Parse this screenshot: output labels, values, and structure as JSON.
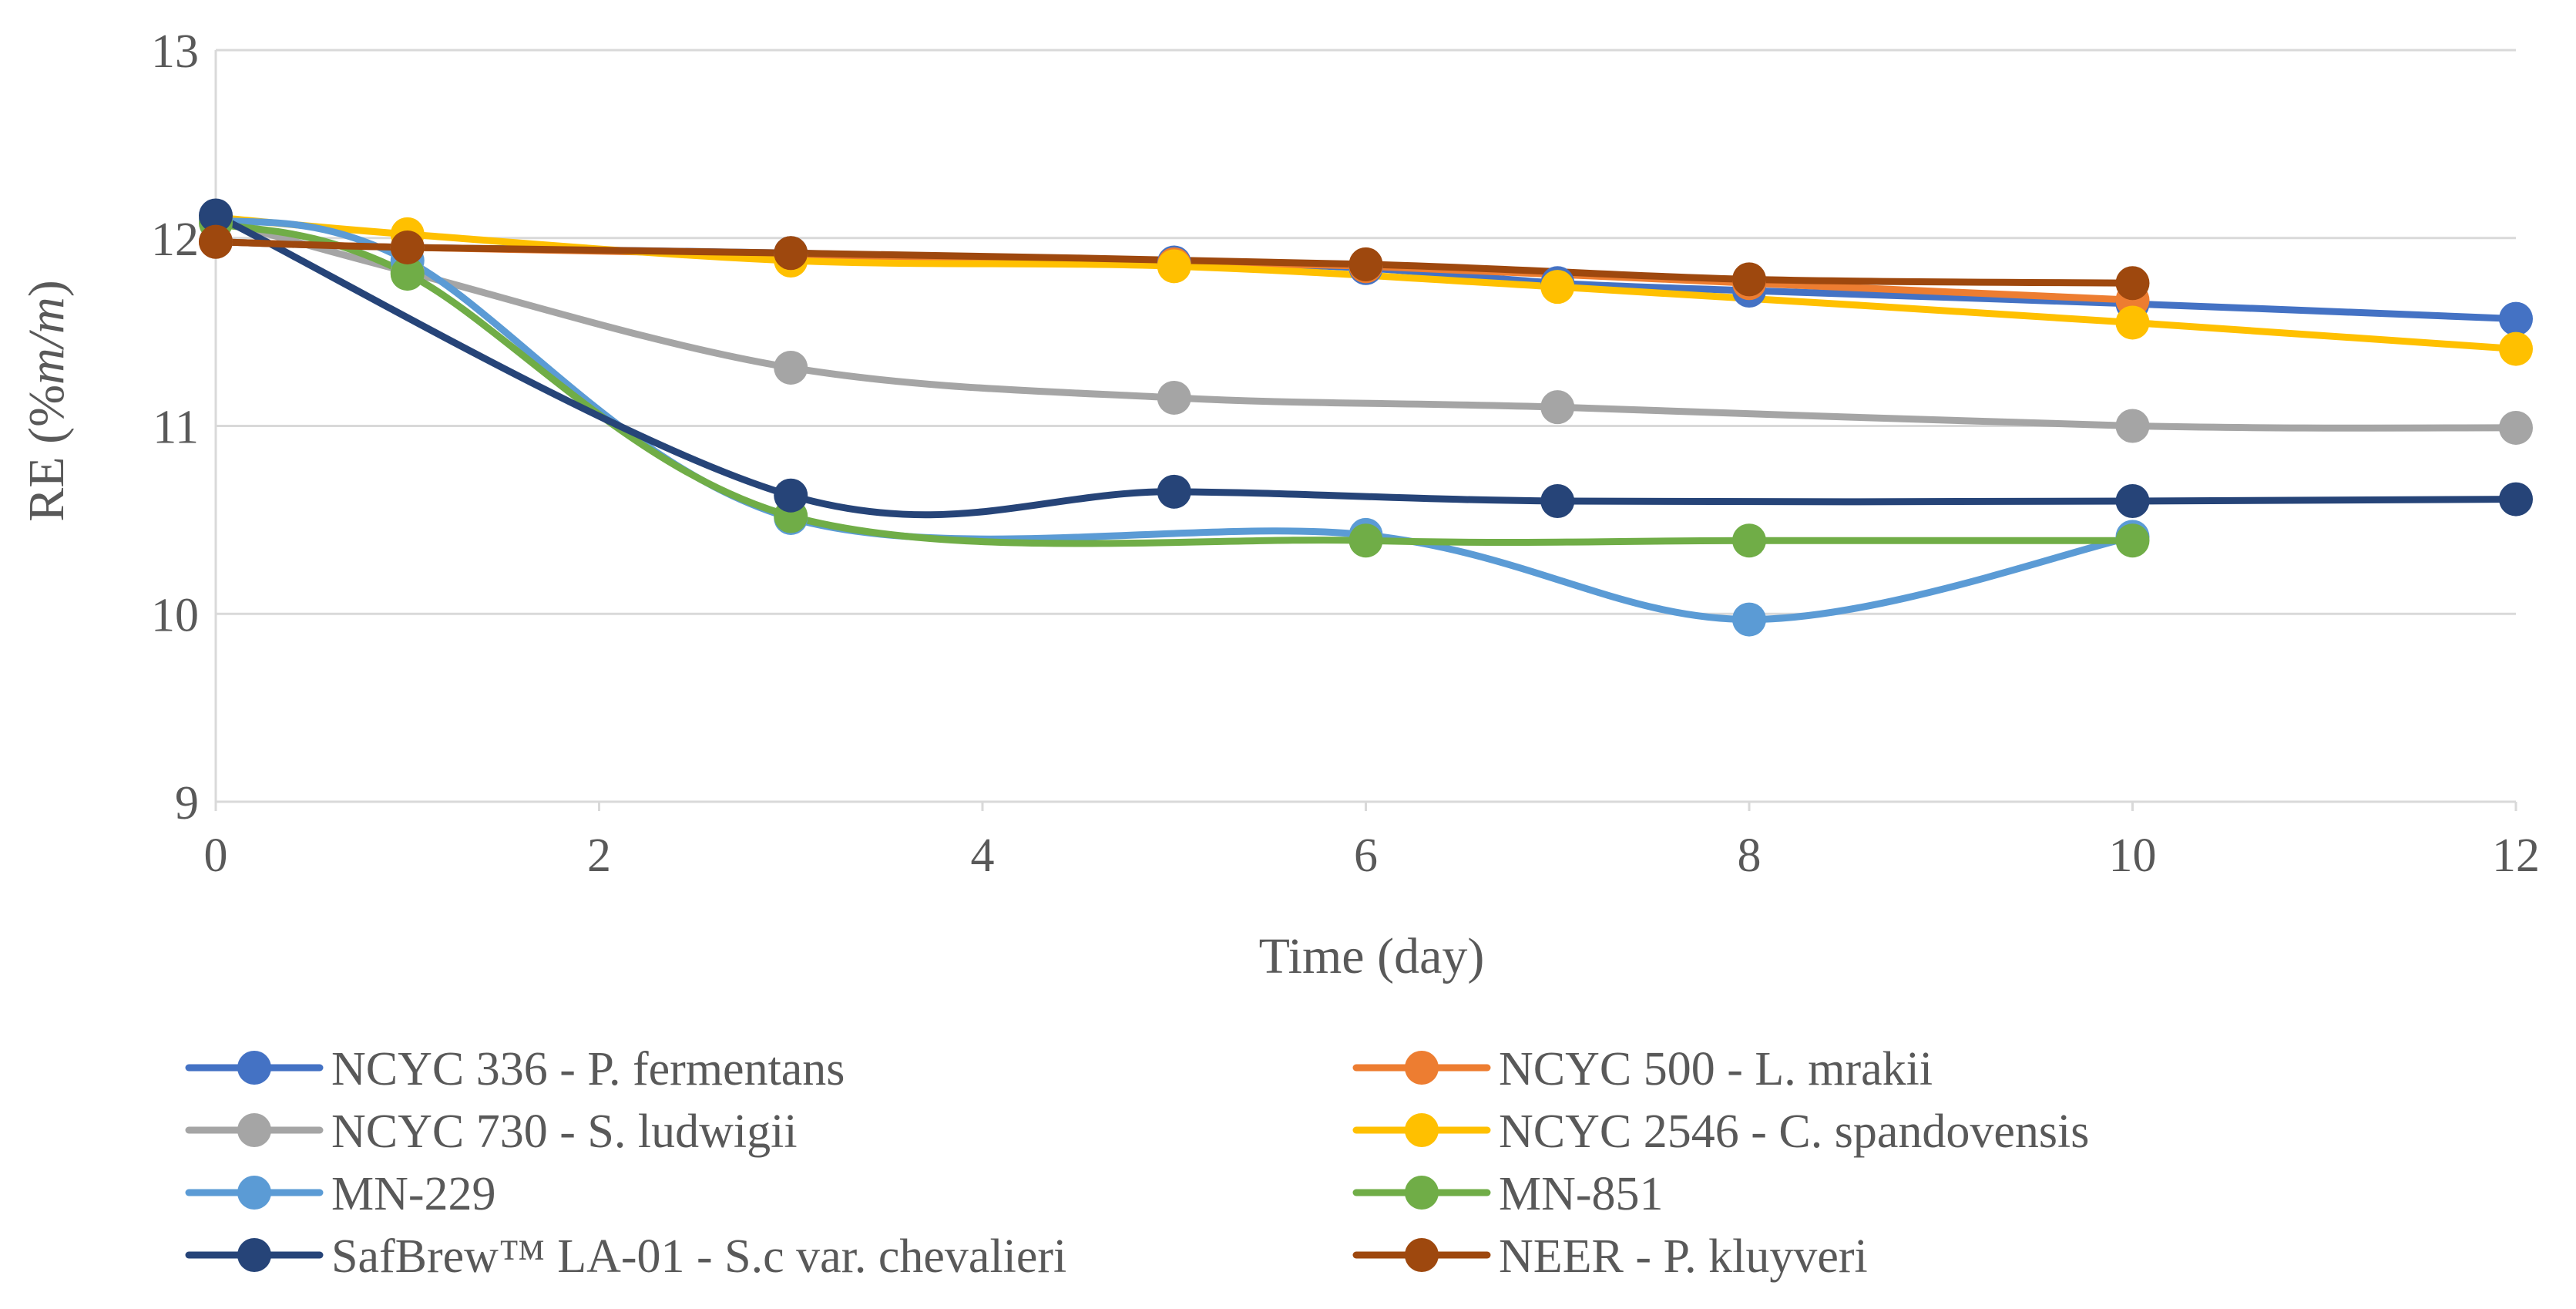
{
  "chart_data": {
    "type": "line",
    "title": "",
    "xlabel": "Time (day)",
    "ylabel": "RE (%m/m)",
    "ylabel_parts": {
      "prefix": "RE (%",
      "italic": "m/m",
      "suffix": ")"
    },
    "xlim": [
      0,
      12
    ],
    "ylim": [
      9,
      13
    ],
    "xticks": [
      "0",
      "2",
      "4",
      "6",
      "8",
      "10",
      "12"
    ],
    "yticks": [
      "9",
      "10",
      "11",
      "12",
      "13"
    ],
    "grid": "horizontal",
    "smooth": true,
    "legend_position": "bottom",
    "series": [
      {
        "name": "NCYC 336 - P. fermentans",
        "color": "#4472C4",
        "x": [
          0,
          1,
          3,
          5,
          6,
          7,
          8,
          10,
          12
        ],
        "y": [
          11.98,
          11.95,
          11.92,
          11.87,
          11.84,
          11.76,
          11.72,
          11.65,
          11.57
        ]
      },
      {
        "name": "NCYC 500 - L. mrakii",
        "color": "#ED7D31",
        "x": [
          0,
          1,
          3,
          5,
          6,
          8,
          10
        ],
        "y": [
          11.98,
          11.95,
          11.91,
          11.86,
          11.85,
          11.76,
          11.67
        ]
      },
      {
        "name": "NCYC 730 - S. ludwigii",
        "color": "#A5A5A5",
        "x": [
          0,
          1,
          3,
          5,
          7,
          10,
          12
        ],
        "y": [
          12.1,
          11.82,
          11.31,
          11.15,
          11.1,
          11.0,
          10.99
        ]
      },
      {
        "name": "NCYC 2546 - C. spandovensis",
        "color": "#FFC000",
        "x": [
          0,
          1,
          3,
          5,
          7,
          10,
          12
        ],
        "y": [
          12.11,
          12.02,
          11.88,
          11.85,
          11.74,
          11.55,
          11.41
        ]
      },
      {
        "name": "MN-229",
        "color": "#5B9BD5",
        "x": [
          0,
          1,
          3,
          6,
          8,
          10
        ],
        "y": [
          12.1,
          11.88,
          10.51,
          10.42,
          9.97,
          10.41
        ]
      },
      {
        "name": "MN-851",
        "color": "#70AD47",
        "x": [
          0,
          1,
          3,
          6,
          8,
          10
        ],
        "y": [
          12.08,
          11.81,
          10.52,
          10.39,
          10.39,
          10.39
        ]
      },
      {
        "name": "SafBrew™ LA-01 - S.c var. chevalieri",
        "color": "#264478",
        "x": [
          0,
          3,
          5,
          7,
          10,
          12
        ],
        "y": [
          12.12,
          10.63,
          10.65,
          10.6,
          10.6,
          10.61
        ]
      },
      {
        "name": "NEER - P. kluyveri",
        "color": "#9E480E",
        "x": [
          0,
          1,
          3,
          6,
          8,
          10
        ],
        "y": [
          11.98,
          11.95,
          11.92,
          11.86,
          11.78,
          11.76
        ]
      }
    ]
  }
}
